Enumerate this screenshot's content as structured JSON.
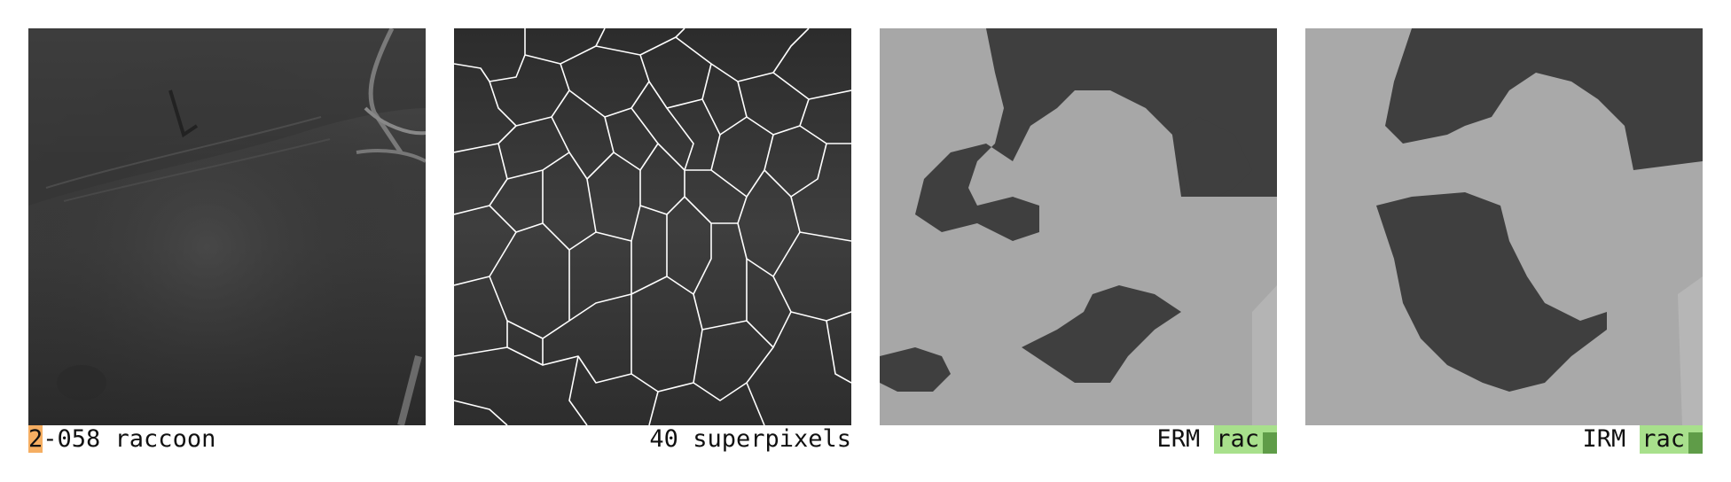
{
  "panels": [
    {
      "id": "original",
      "caption_highlight": "2",
      "caption_rest": "-058 raccoon",
      "highlight_color": "#f5ae62"
    },
    {
      "id": "superpixels",
      "caption": "40 superpixels",
      "superpixel_count": 40,
      "boundary_color": "#ffffff"
    },
    {
      "id": "erm",
      "method": "ERM",
      "prediction": "rac",
      "confidence": 0.75,
      "badge_color": "#a8e08c",
      "bar_color": "#5f9c48"
    },
    {
      "id": "irm",
      "method": "IRM",
      "prediction": "rac",
      "confidence": 0.75,
      "badge_color": "#a8e08c",
      "bar_color": "#5f9c48"
    }
  ],
  "icons": [
    "camera-trap-night-image",
    "superpixel-overlay-image",
    "erm-mask-image",
    "irm-mask-image"
  ]
}
